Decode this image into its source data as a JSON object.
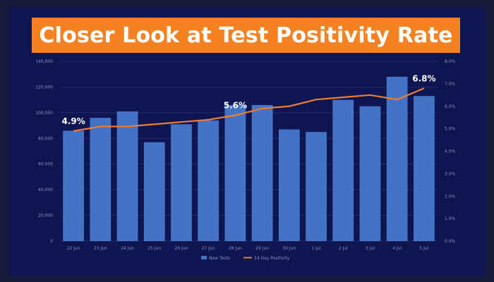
{
  "slide": {
    "title": "Closer Look at Test Positivity Rate"
  },
  "colors": {
    "background": "#0e1551",
    "banner": "#f58222",
    "bars": "#4472c4",
    "line": "#ed7d31"
  },
  "chart_data": {
    "type": "bar",
    "title": "",
    "categories": [
      "22 Jun",
      "23 Jun",
      "24 Jun",
      "25 Jun",
      "26 Jun",
      "27 Jun",
      "28 Jun",
      "29 Jun",
      "30 Jun",
      "1 Jul",
      "2 Jul",
      "3 Jul",
      "4 Jul",
      "5 Jul"
    ],
    "series": [
      {
        "name": "New Tests",
        "type": "bar",
        "axis": "left",
        "values": [
          86000,
          96000,
          101000,
          77000,
          91000,
          94000,
          106000,
          106000,
          87000,
          85000,
          110000,
          105000,
          128000,
          113000
        ]
      },
      {
        "name": "14 Day Positivity",
        "type": "line",
        "axis": "right",
        "values": [
          4.9,
          5.1,
          5.1,
          5.2,
          5.3,
          5.4,
          5.6,
          5.9,
          6.0,
          6.3,
          6.4,
          6.5,
          6.3,
          6.8
        ]
      }
    ],
    "left_axis": {
      "ylim": [
        0,
        140000
      ],
      "ticks": [
        "0",
        "20,000",
        "40,000",
        "60,000",
        "80,000",
        "100,000",
        "120,000",
        "140,000"
      ]
    },
    "right_axis": {
      "ylim": [
        0,
        8.0
      ],
      "ticks": [
        "0.0%",
        "1.0%",
        "2.0%",
        "3.0%",
        "4.0%",
        "5.0%",
        "6.0%",
        "7.0%",
        "8.0%"
      ]
    },
    "annotations": [
      {
        "index": 0,
        "text": "4.9%"
      },
      {
        "index": 6,
        "text": "5.6%"
      },
      {
        "index": 13,
        "text": "6.8%"
      }
    ],
    "grid": true,
    "legend_position": "bottom"
  }
}
